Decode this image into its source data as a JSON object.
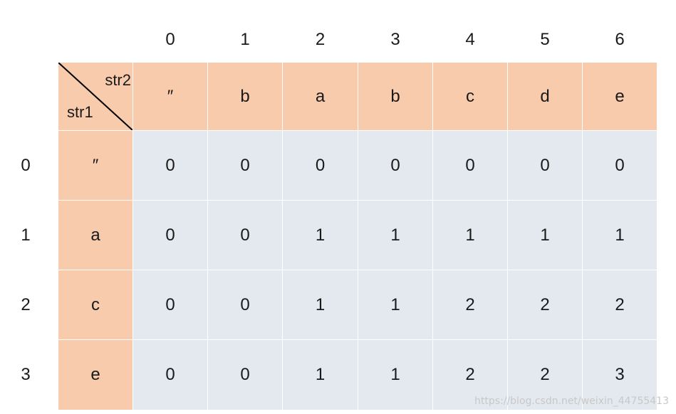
{
  "column_indices": [
    "0",
    "1",
    "2",
    "3",
    "4",
    "5",
    "6"
  ],
  "row_indices": [
    "0",
    "1",
    "2",
    "3"
  ],
  "corner": {
    "top_label": "str2",
    "bottom_label": "str1"
  },
  "str2_chars": [
    "″",
    "b",
    "a",
    "b",
    "c",
    "d",
    "e"
  ],
  "str1_chars": [
    "″",
    "a",
    "c",
    "e"
  ],
  "matrix": [
    [
      "0",
      "0",
      "0",
      "0",
      "0",
      "0",
      "0"
    ],
    [
      "0",
      "0",
      "1",
      "1",
      "1",
      "1",
      "1"
    ],
    [
      "0",
      "0",
      "1",
      "1",
      "2",
      "2",
      "2"
    ],
    [
      "0",
      "0",
      "1",
      "1",
      "2",
      "2",
      "3"
    ]
  ],
  "colors": {
    "header_fill": "#f8cbad",
    "body_fill": "#e4e9f0"
  },
  "watermark": "https://blog.csdn.net/weixin_44755413"
}
